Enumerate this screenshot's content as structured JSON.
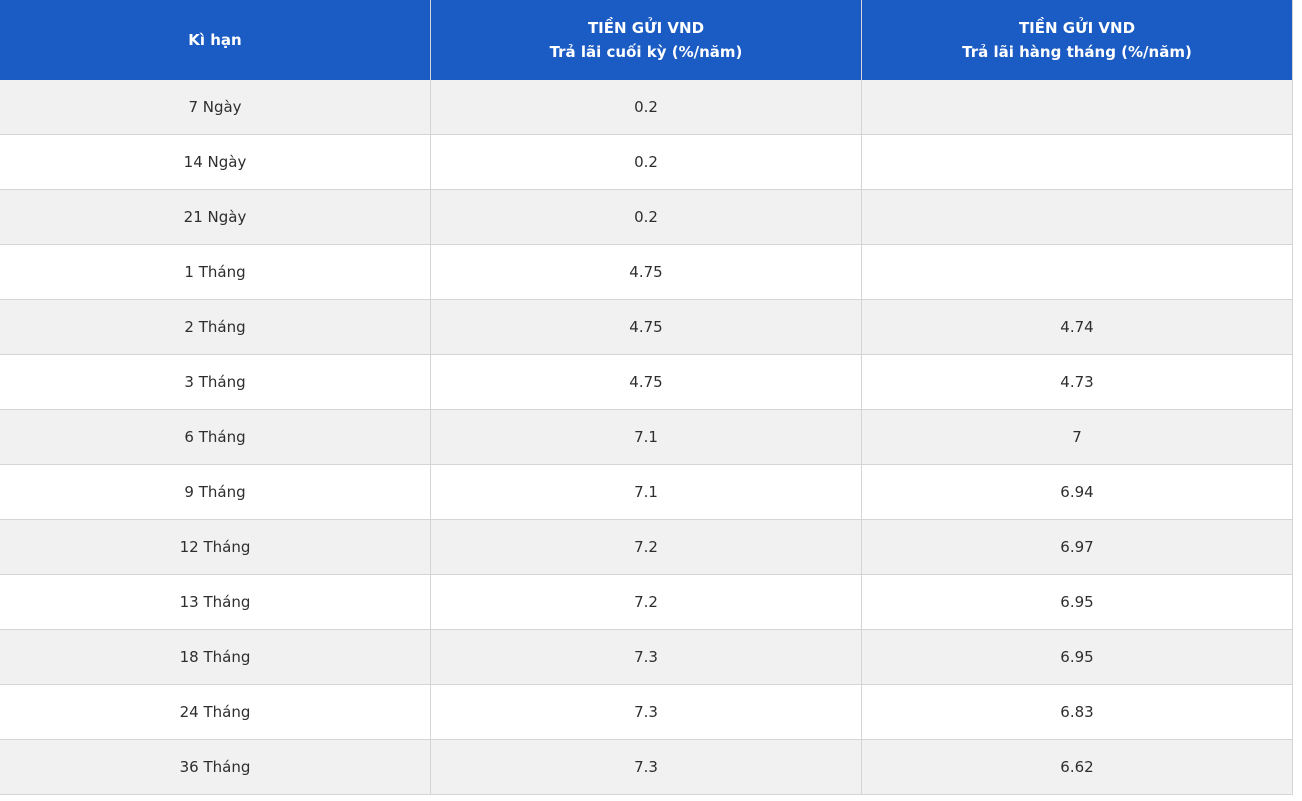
{
  "colors": {
    "header_bg": "#1a5bc4",
    "header_text": "#ffffff",
    "row_bg": "#ffffff",
    "row_alt_bg": "#f1f1f1",
    "border": "#d5d5d5",
    "body_text": "#2e2e2e"
  },
  "table": {
    "header": {
      "term": {
        "line1": "Kì hạn",
        "line2": ""
      },
      "end_of_term": {
        "line1": "TIỀN GỬI VND",
        "line2": "Trả lãi cuối kỳ (%/năm)"
      },
      "monthly": {
        "line1": "TIỀN GỬI VND",
        "line2": "Trả lãi hàng tháng (%/năm)"
      }
    },
    "rows": [
      {
        "term": "7 Ngày",
        "end_of_term_rate": "0.2",
        "monthly_rate": ""
      },
      {
        "term": "14 Ngày",
        "end_of_term_rate": "0.2",
        "monthly_rate": ""
      },
      {
        "term": "21 Ngày",
        "end_of_term_rate": "0.2",
        "monthly_rate": ""
      },
      {
        "term": "1 Tháng",
        "end_of_term_rate": "4.75",
        "monthly_rate": ""
      },
      {
        "term": "2 Tháng",
        "end_of_term_rate": "4.75",
        "monthly_rate": "4.74"
      },
      {
        "term": "3 Tháng",
        "end_of_term_rate": "4.75",
        "monthly_rate": "4.73"
      },
      {
        "term": "6 Tháng",
        "end_of_term_rate": "7.1",
        "monthly_rate": "7"
      },
      {
        "term": "9 Tháng",
        "end_of_term_rate": "7.1",
        "monthly_rate": "6.94"
      },
      {
        "term": "12 Tháng",
        "end_of_term_rate": "7.2",
        "monthly_rate": "6.97"
      },
      {
        "term": "13 Tháng",
        "end_of_term_rate": "7.2",
        "monthly_rate": "6.95"
      },
      {
        "term": "18 Tháng",
        "end_of_term_rate": "7.3",
        "monthly_rate": "6.95"
      },
      {
        "term": "24 Tháng",
        "end_of_term_rate": "7.3",
        "monthly_rate": "6.83"
      },
      {
        "term": "36 Tháng",
        "end_of_term_rate": "7.3",
        "monthly_rate": "6.62"
      }
    ]
  }
}
